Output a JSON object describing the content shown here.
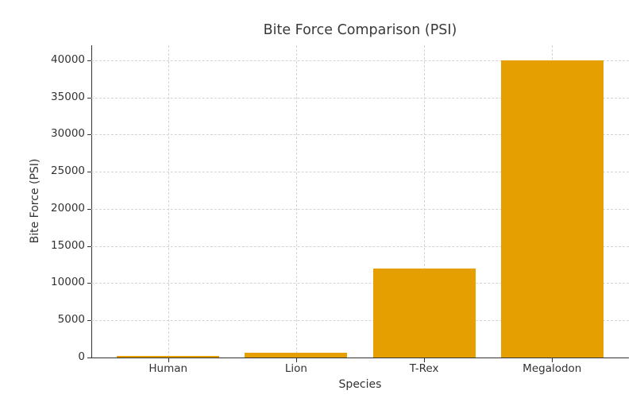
{
  "chart_data": {
    "type": "bar",
    "title": "Bite Force Comparison (PSI)",
    "xlabel": "Species",
    "ylabel": "Bite Force (PSI)",
    "categories": [
      "Human",
      "Lion",
      "T-Rex",
      "Megalodon"
    ],
    "values": [
      162,
      650,
      12000,
      40000
    ],
    "ylim": [
      0,
      42000
    ],
    "yticks": [
      0,
      5000,
      10000,
      15000,
      20000,
      25000,
      30000,
      35000,
      40000
    ],
    "grid": true,
    "legend": null,
    "bar_color": "#e69f00"
  }
}
